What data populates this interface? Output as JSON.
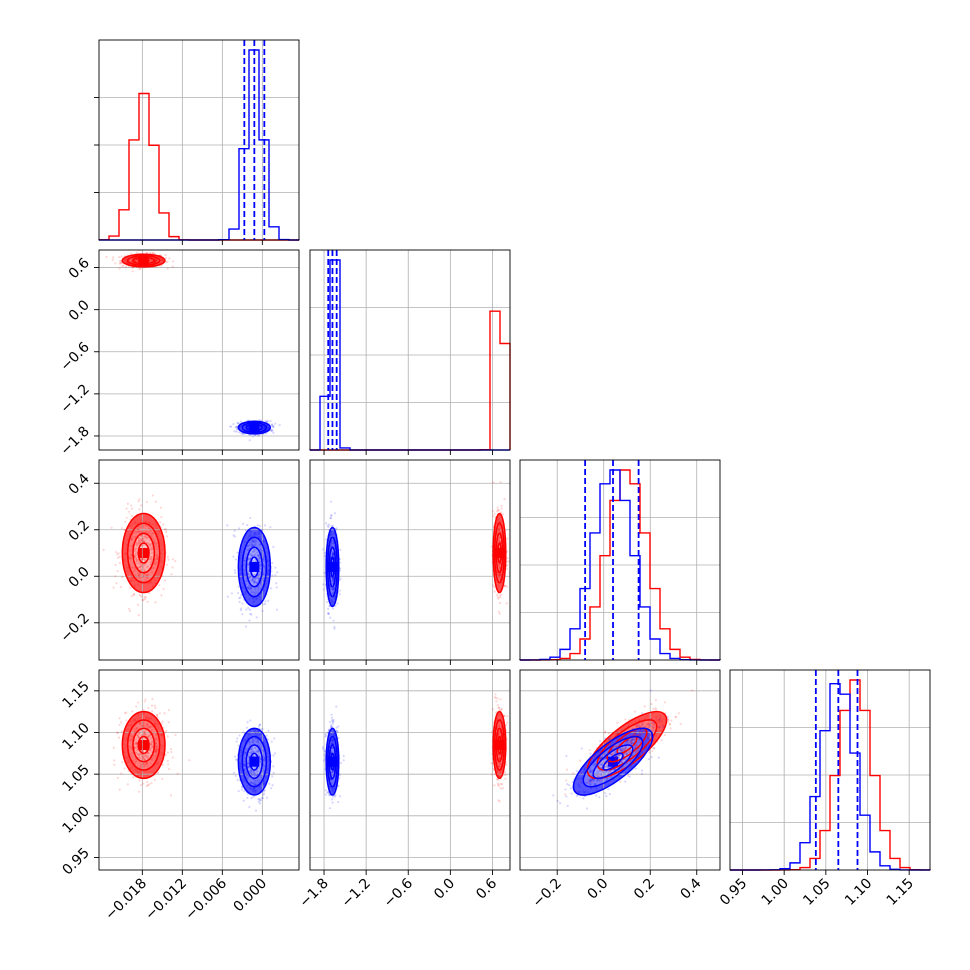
{
  "chart_data": {
    "type": "corner",
    "title": "",
    "params": [
      {
        "range": [
          -0.0245,
          0.0055
        ],
        "ticks": [
          -0.018,
          -0.012,
          -0.006,
          0.0
        ],
        "tick_labels": [
          "−0.018",
          "−0.012",
          "−0.006",
          "0.000"
        ]
      },
      {
        "range": [
          -2.0,
          0.85
        ],
        "ticks": [
          -1.8,
          -1.2,
          -0.6,
          0.0,
          0.6
        ],
        "tick_labels": [
          "−1.8",
          "−1.2",
          "−0.6",
          "0.0",
          "0.6"
        ]
      },
      {
        "range": [
          -0.36,
          0.5
        ],
        "ticks": [
          -0.2,
          0.0,
          0.2,
          0.4
        ],
        "tick_labels": [
          "−0.2",
          "0.0",
          "0.2",
          "0.4"
        ]
      },
      {
        "range": [
          0.935,
          1.175
        ],
        "ticks": [
          0.95,
          1.0,
          1.05,
          1.1,
          1.15
        ],
        "tick_labels": [
          "0.95",
          "1.00",
          "1.05",
          "1.10",
          "1.15"
        ]
      }
    ],
    "series": [
      {
        "color": "#ff0000",
        "mean": [
          -0.0178,
          0.7,
          0.1,
          1.085
        ],
        "std": [
          0.0016,
          0.045,
          0.085,
          0.02
        ],
        "corr_23": 0.75,
        "quantiles": null
      },
      {
        "color": "#0000ff",
        "mean": [
          -0.0012,
          -1.68,
          0.04,
          1.065
        ],
        "std": [
          0.0012,
          0.045,
          0.085,
          0.02
        ],
        "corr_23": 0.75,
        "quantiles": [
          [
            -0.0027,
            -0.0012,
            0.0003
          ],
          [
            -1.74,
            -1.68,
            -1.62
          ],
          [
            -0.08,
            0.04,
            0.15
          ],
          [
            1.038,
            1.065,
            1.088
          ]
        ]
      }
    ],
    "histogram_bins": 20,
    "contour_levels": [
      0.5,
      1.0,
      1.5,
      2.0
    ],
    "grid": true,
    "legend": "none"
  }
}
